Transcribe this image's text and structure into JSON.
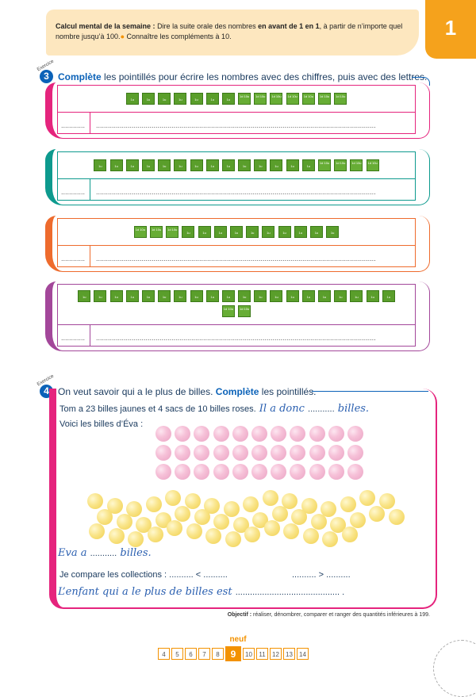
{
  "header": {
    "title": "Calcul mental de la semaine :",
    "text_a": " Dire la suite orale des nombres ",
    "text_bold": "en avant de 1 en 1",
    "text_b": ", à partir de n’importe quel nombre jusqu’à 100.",
    "text_c": " Connaître les compléments à 10.",
    "bullet": "●"
  },
  "page_number": "1",
  "exercise3": {
    "label": "Exercice",
    "number": "3",
    "instruction_bold": "Complète",
    "instruction_rest": " les pointillés pour écrire les nombres avec des chiffres, puis avec des lettres.",
    "unit_label": "1u",
    "ten_label": "1d 10u",
    "short_dots": "............",
    "long_dots": ".............................................................................................................................................",
    "boxes": [
      {
        "color": "#e5247d",
        "tens_first": false,
        "units": 7,
        "tens": 7
      },
      {
        "color": "#0d9a8e",
        "tens_first": false,
        "units": 14,
        "tens": 4
      },
      {
        "color": "#ee6b2d",
        "tens_first": true,
        "tens": 3,
        "units": 10
      },
      {
        "color": "#a3479a",
        "tens_first": false,
        "units": 20,
        "tens": 2
      }
    ]
  },
  "exercise4": {
    "label": "Exercice",
    "number": "4",
    "instruction_a": "On veut savoir qui a le plus de billes. ",
    "instruction_bold": "Complète",
    "instruction_b": " les pointillés.",
    "line1": "Tom a 23 billes jaunes et 4 sacs de 10 billes roses.",
    "line1_script": " Il a donc ",
    "line1_dots": "...........",
    "line1_end": " billes.",
    "line2": "Voici les billes d’Éva :",
    "line3_script": "Eva a ",
    "line3_dots": "...........",
    "line3_end": " billes.",
    "line4": "Je compare les collections : ",
    "line4_a": ".......... < ..........",
    "line4_b": ".......... > ..........",
    "line5_script": "L’enfant qui a le plus de billes est ",
    "line5_dots": "........................................... .",
    "pink_marbles": 33,
    "yellow_marbles": 46
  },
  "objective": {
    "label": "Objectif :",
    "text": " réaliser, dénombrer, comparer et ranger des quantités inférieures à 199."
  },
  "footer": {
    "word": "neuf",
    "pages": [
      "4",
      "5",
      "6",
      "7",
      "8",
      "9",
      "10",
      "11",
      "12",
      "13",
      "14"
    ],
    "current": "9"
  },
  "colors": {
    "accent": "#f39200",
    "blue": "#0b62b8",
    "pink": "#e5247d",
    "green": "#5a9e2b"
  }
}
